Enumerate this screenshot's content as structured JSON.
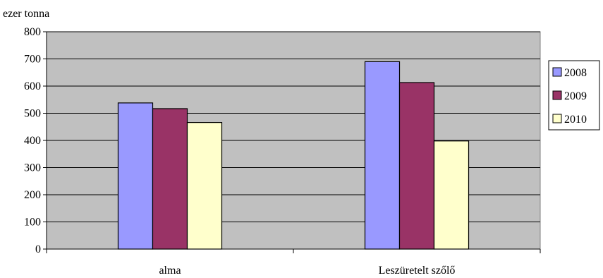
{
  "chart_data": {
    "type": "bar",
    "title": "",
    "unit_label": "ezer tonna",
    "categories": [
      "alma",
      "Leszüretelt szőlő"
    ],
    "series": [
      {
        "name": "2008",
        "values": [
          538,
          690
        ],
        "color": "#9999ff"
      },
      {
        "name": "2009",
        "values": [
          517,
          613
        ],
        "color": "#993366"
      },
      {
        "name": "2010",
        "values": [
          466,
          398
        ],
        "color": "#ffffcc"
      }
    ],
    "ylim": [
      0,
      800
    ],
    "yticks": [
      0,
      100,
      200,
      300,
      400,
      500,
      600,
      700,
      800
    ],
    "grid": true,
    "plot_background": "#c0c0c0",
    "legend_position": "right"
  }
}
